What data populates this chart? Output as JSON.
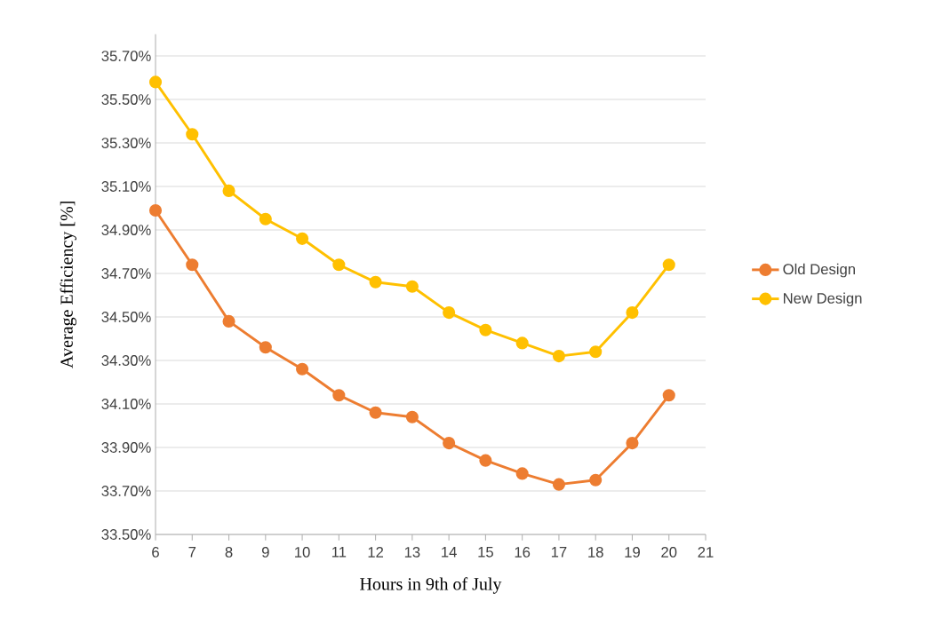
{
  "chart_data": {
    "type": "line",
    "xlabel": "Hours in 9th of July",
    "ylabel": "Average Efficiency [%]",
    "x": [
      6,
      7,
      8,
      9,
      10,
      11,
      12,
      13,
      14,
      15,
      16,
      17,
      18,
      19,
      20
    ],
    "series": [
      {
        "name": "Old Design",
        "color": "#ed7d31",
        "values": [
          34.99,
          34.74,
          34.48,
          34.36,
          34.26,
          34.14,
          34.06,
          34.04,
          33.92,
          33.84,
          33.78,
          33.73,
          33.75,
          33.92,
          34.14
        ]
      },
      {
        "name": "New Design",
        "color": "#ffc000",
        "values": [
          35.58,
          35.34,
          35.08,
          34.95,
          34.86,
          34.74,
          34.66,
          34.64,
          34.52,
          34.44,
          34.38,
          34.32,
          34.34,
          34.52,
          34.74
        ]
      }
    ],
    "xlim": [
      6,
      21
    ],
    "xticks": [
      6,
      7,
      8,
      9,
      10,
      11,
      12,
      13,
      14,
      15,
      16,
      17,
      18,
      19,
      20,
      21
    ],
    "ylim": [
      33.5,
      35.8
    ],
    "yticks": [
      {
        "value": 33.5,
        "label": "33.50%"
      },
      {
        "value": 33.7,
        "label": "33.70%"
      },
      {
        "value": 33.9,
        "label": "33.90%"
      },
      {
        "value": 34.1,
        "label": "34.10%"
      },
      {
        "value": 34.3,
        "label": "34.30%"
      },
      {
        "value": 34.5,
        "label": "34.50%"
      },
      {
        "value": 34.7,
        "label": "34.70%"
      },
      {
        "value": 34.9,
        "label": "34.90%"
      },
      {
        "value": 35.1,
        "label": "35.10%"
      },
      {
        "value": 35.3,
        "label": "35.30%"
      },
      {
        "value": 35.5,
        "label": "35.50%"
      },
      {
        "value": 35.7,
        "label": "35.70%"
      }
    ],
    "grid": "y",
    "legend": "right",
    "marker": "circle",
    "line_style": "solid"
  }
}
